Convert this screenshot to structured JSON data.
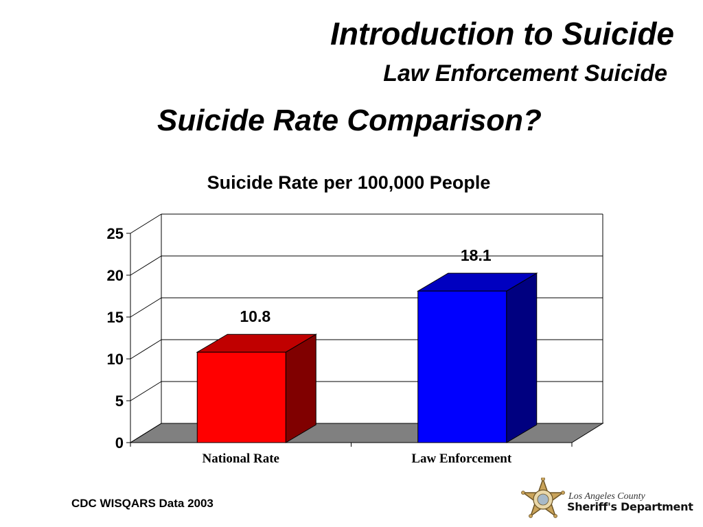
{
  "slide": {
    "title": "Introduction to Suicide",
    "subtitle": "Law Enforcement Suicide",
    "heading": "Suicide Rate Comparison?"
  },
  "chart_data": {
    "type": "bar",
    "title": "Suicide Rate per 100,000 People",
    "categories": [
      "National Rate",
      "Law Enforcement"
    ],
    "values": [
      10.8,
      18.1
    ],
    "data_labels": [
      "10.8",
      "18.1"
    ],
    "ylim": [
      0,
      25
    ],
    "yticks": [
      0,
      5,
      10,
      15,
      20,
      25
    ],
    "xlabel": "",
    "ylabel": "",
    "grid": true,
    "style": "3d-column",
    "colors": [
      "#ff0000",
      "#0000ff"
    ],
    "side_colors": [
      "#800000",
      "#000080"
    ],
    "top_colors": [
      "#c00000",
      "#0000c0"
    ],
    "floor_color": "#808080"
  },
  "footer": {
    "source": "CDC WISQARS Data 2003",
    "logo_county": "Los Angeles County",
    "logo_department": "Sheriff's Department",
    "logo_badge_text": "SHERIFF LOS ANGELES COUNTY"
  }
}
